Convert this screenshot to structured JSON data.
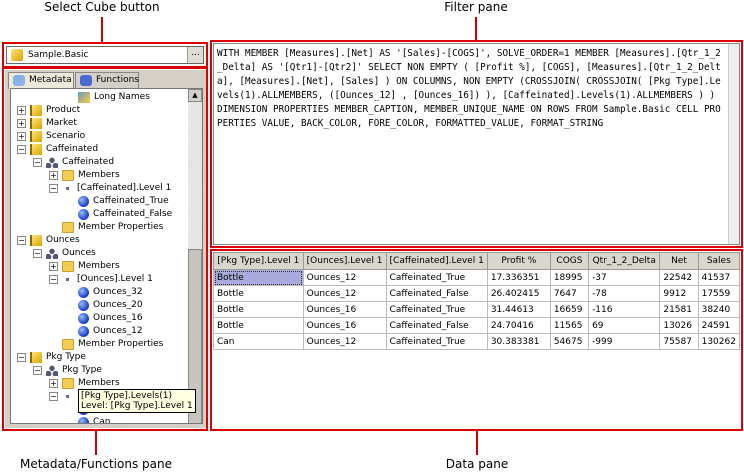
{
  "callouts": {
    "select_cube": "Select Cube button",
    "filter_pane": "Filter pane",
    "metadata_pane": "Metadata/Functions pane",
    "data_pane": "Data pane"
  },
  "cube": {
    "value": "Sample.Basic",
    "browse": "..."
  },
  "tabs": [
    {
      "label": "Metadata",
      "active": true
    },
    {
      "label": "Functions",
      "active": false
    }
  ],
  "tree": [
    {
      "label": "Long Names",
      "depth": 3,
      "icon": "long-names-icon",
      "exp": ""
    },
    {
      "label": "Product",
      "depth": 0,
      "icon": "dimension-icon",
      "exp": "+"
    },
    {
      "label": "Market",
      "depth": 0,
      "icon": "dimension-icon",
      "exp": "+"
    },
    {
      "label": "Scenario",
      "depth": 0,
      "icon": "dimension-icon",
      "exp": "+"
    },
    {
      "label": "Caffeinated",
      "depth": 0,
      "icon": "dimension-icon",
      "exp": "-"
    },
    {
      "label": "Caffeinated",
      "depth": 1,
      "icon": "hierarchy-icon",
      "exp": "-"
    },
    {
      "label": "Members",
      "depth": 2,
      "icon": "members-folder-icon",
      "exp": "+"
    },
    {
      "label": "[Caffeinated].Level 1",
      "depth": 2,
      "icon": "level-icon",
      "exp": "-"
    },
    {
      "label": "Caffeinated_True",
      "depth": 3,
      "icon": "member-icon",
      "exp": ""
    },
    {
      "label": "Caffeinated_False",
      "depth": 3,
      "icon": "member-icon",
      "exp": ""
    },
    {
      "label": "Member Properties",
      "depth": 2,
      "icon": "folder-icon",
      "exp": "",
      "noexp": true
    },
    {
      "label": "Ounces",
      "depth": 0,
      "icon": "dimension-icon",
      "exp": "-"
    },
    {
      "label": "Ounces",
      "depth": 1,
      "icon": "hierarchy-icon",
      "exp": "-"
    },
    {
      "label": "Members",
      "depth": 2,
      "icon": "members-folder-icon",
      "exp": "+"
    },
    {
      "label": "[Ounces].Level 1",
      "depth": 2,
      "icon": "level-icon",
      "exp": "-"
    },
    {
      "label": "Ounces_32",
      "depth": 3,
      "icon": "member-icon",
      "exp": ""
    },
    {
      "label": "Ounces_20",
      "depth": 3,
      "icon": "member-icon",
      "exp": ""
    },
    {
      "label": "Ounces_16",
      "depth": 3,
      "icon": "member-icon",
      "exp": ""
    },
    {
      "label": "Ounces_12",
      "depth": 3,
      "icon": "member-icon",
      "exp": ""
    },
    {
      "label": "Member Properties",
      "depth": 2,
      "icon": "folder-icon",
      "exp": "",
      "noexp": true
    },
    {
      "label": "Pkg Type",
      "depth": 0,
      "icon": "dimension-icon",
      "exp": "-"
    },
    {
      "label": "Pkg Type",
      "depth": 1,
      "icon": "hierarchy-icon",
      "exp": "-"
    },
    {
      "label": "Members",
      "depth": 2,
      "icon": "members-folder-icon",
      "exp": "+"
    },
    {
      "label": "",
      "depth": 2,
      "icon": "level-icon",
      "exp": "-"
    },
    {
      "label": "",
      "depth": 3,
      "icon": "member-icon",
      "exp": ""
    },
    {
      "label": "Can",
      "depth": 3,
      "icon": "member-icon",
      "exp": ""
    }
  ],
  "tooltip": {
    "line1": "[Pkg Type].Levels(1)",
    "line2": "Level: [Pkg Type].Level 1"
  },
  "query": "WITH MEMBER [Measures].[Net] AS '[Sales]-[COGS]', SOLVE_ORDER=1 MEMBER [Measures].[Qtr_1_2_Delta] AS '[Qtr1]-[Qtr2]' SELECT NON EMPTY ( [Profit %], [COGS], [Measures].[Qtr_1_2_Delta], [Measures].[Net], [Sales] ) ON COLUMNS, NON EMPTY (CROSSJOIN( CROSSJOIN( [Pkg Type].Levels(1).ALLMEMBERS, ([Ounces_12] , [Ounces_16]) ), [Caffeinated].Levels(1).ALLMEMBERS ) ) DIMENSION PROPERTIES MEMBER_CAPTION, MEMBER_UNIQUE_NAME ON ROWS FROM Sample.Basic CELL PROPERTIES VALUE, BACK_COLOR, FORE_COLOR, FORMATTED_VALUE, FORMAT_STRING",
  "grid": {
    "columns": [
      "[Pkg Type].Level 1",
      "[Ounces].Level 1",
      "[Caffeinated].Level 1",
      "Profit %",
      "COGS",
      "Qtr_1_2_Delta",
      "Net",
      "Sales"
    ],
    "rows": [
      [
        "Bottle",
        "Ounces_12",
        "Caffeinated_True",
        "17.336351",
        "18995",
        "-37",
        "22542",
        "41537"
      ],
      [
        "Bottle",
        "Ounces_12",
        "Caffeinated_False",
        "26.402415",
        "7647",
        "-78",
        "9912",
        "17559"
      ],
      [
        "Bottle",
        "Ounces_16",
        "Caffeinated_True",
        "31.44613",
        "16659",
        "-116",
        "21581",
        "38240"
      ],
      [
        "Bottle",
        "Ounces_16",
        "Caffeinated_False",
        "24.70416",
        "11565",
        "69",
        "13026",
        "24591"
      ],
      [
        "Can",
        "Ounces_12",
        "Caffeinated_True",
        "30.383381",
        "54675",
        "-999",
        "75587",
        "130262"
      ]
    ]
  },
  "colors": {
    "callout_red": "#dd0000",
    "selected_cell": "#aaaadd",
    "tooltip_bg": "#ffffe1"
  }
}
